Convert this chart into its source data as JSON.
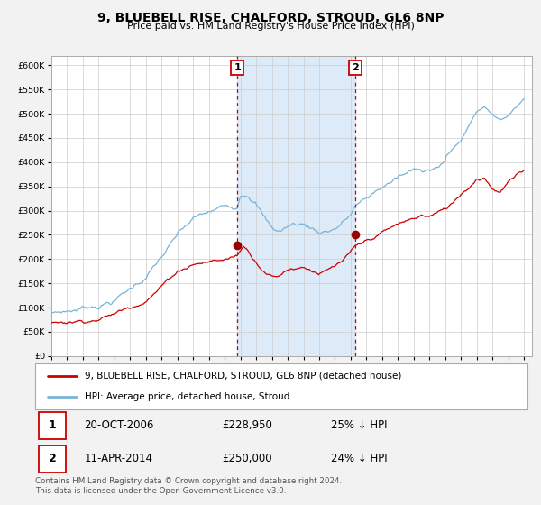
{
  "title": "9, BLUEBELL RISE, CHALFORD, STROUD, GL6 8NP",
  "subtitle": "Price paid vs. HM Land Registry's House Price Index (HPI)",
  "background_color": "#f2f2f2",
  "plot_bg_color": "#ffffff",
  "shaded_region_color": "#ddeaf7",
  "grid_color": "#cccccc",
  "hpi_color": "#7ab3d8",
  "price_color": "#cc0000",
  "marker_color": "#990000",
  "vline_color": "#cc0000",
  "ylim": [
    0,
    620000
  ],
  "xlim_start": 1995.0,
  "xlim_end": 2025.5,
  "transaction1_date": 2006.8,
  "transaction1_price": 228950,
  "transaction2_date": 2014.27,
  "transaction2_price": 250000,
  "legend_label_price": "9, BLUEBELL RISE, CHALFORD, STROUD, GL6 8NP (detached house)",
  "legend_label_hpi": "HPI: Average price, detached house, Stroud",
  "annotation1_date": "20-OCT-2006",
  "annotation1_price": "£228,950",
  "annotation1_pct": "25% ↓ HPI",
  "annotation2_date": "11-APR-2014",
  "annotation2_price": "£250,000",
  "annotation2_pct": "24% ↓ HPI",
  "footer": "Contains HM Land Registry data © Crown copyright and database right 2024.\nThis data is licensed under the Open Government Licence v3.0.",
  "yticks": [
    0,
    50000,
    100000,
    150000,
    200000,
    250000,
    300000,
    350000,
    400000,
    450000,
    500000,
    550000,
    600000
  ],
  "ytick_labels": [
    "£0",
    "£50K",
    "£100K",
    "£150K",
    "£200K",
    "£250K",
    "£300K",
    "£350K",
    "£400K",
    "£450K",
    "£500K",
    "£550K",
    "£600K"
  ],
  "xticks": [
    1995,
    1996,
    1997,
    1998,
    1999,
    2000,
    2001,
    2002,
    2003,
    2004,
    2005,
    2006,
    2007,
    2008,
    2009,
    2010,
    2011,
    2012,
    2013,
    2014,
    2015,
    2016,
    2017,
    2018,
    2019,
    2020,
    2021,
    2022,
    2023,
    2024,
    2025
  ]
}
